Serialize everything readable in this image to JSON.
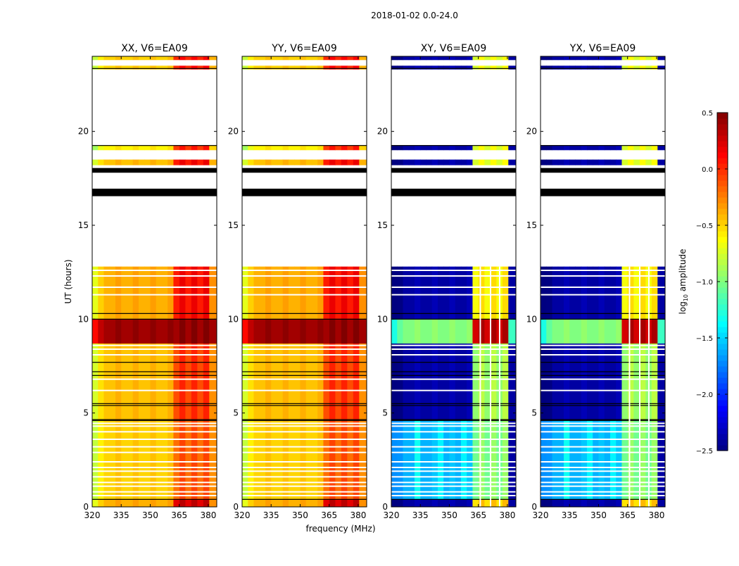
{
  "chart_data": {
    "type": "heatmap",
    "title": "2018-01-02 0.0-24.0",
    "xlabel": "frequency (MHz)",
    "ylabel": "UT (hours)",
    "xlim": [
      320,
      384.4
    ],
    "ylim": [
      0,
      24
    ],
    "xticks": [
      "320",
      "335",
      "350",
      "365",
      "380"
    ],
    "xtick_values": [
      320,
      335,
      350,
      365,
      380
    ],
    "yticks": [
      "0",
      "5",
      "10",
      "15",
      "20"
    ],
    "ytick_values": [
      0,
      5,
      10,
      15,
      20
    ],
    "panels": [
      {
        "title": "XX, V6=EA09",
        "kind": "parallel"
      },
      {
        "title": "YY, V6=EA09",
        "kind": "parallel"
      },
      {
        "title": "XY, V6=EA09",
        "kind": "cross"
      },
      {
        "title": "YX, V6=EA09",
        "kind": "cross"
      }
    ],
    "frequency_bands_mhz": {
      "low": [
        320,
        362
      ],
      "high": [
        362,
        380.5
      ],
      "tail": [
        380.5,
        384.4
      ]
    },
    "high_band_gaps_mhz": [
      366,
      371.3,
      376
    ],
    "segments_note": "values are log10 amplitude [low, high, tail] for parallel / cross panels; state flagged = blank, black = no data",
    "segments": [
      {
        "t0": 0.0,
        "t1": 0.4,
        "state": "data",
        "parallel": [
          -0.4,
          0.25,
          -0.3
        ],
        "cross": [
          -2.4,
          -0.5,
          -2.4
        ]
      },
      {
        "t0": 0.4,
        "t1": 4.6,
        "state": "data",
        "parallel": [
          -0.5,
          -0.15,
          -0.3
        ],
        "cross": [
          -1.6,
          -1.0,
          -2.4
        ]
      },
      {
        "t0": 4.6,
        "t1": 8.7,
        "state": "data",
        "parallel": [
          -0.45,
          -0.05,
          -0.3
        ],
        "cross": [
          -2.4,
          -0.9,
          -2.4
        ]
      },
      {
        "t0": 8.7,
        "t1": 10.0,
        "state": "data",
        "parallel": [
          0.4,
          0.45,
          0.4
        ],
        "cross": [
          -1.0,
          0.3,
          -1.2
        ]
      },
      {
        "t0": 10.0,
        "t1": 12.8,
        "state": "data",
        "parallel": [
          -0.4,
          0.1,
          -0.3
        ],
        "cross": [
          -2.4,
          -0.6,
          -2.4
        ]
      },
      {
        "t0": 12.8,
        "t1": 16.55,
        "state": "flagged"
      },
      {
        "t0": 16.55,
        "t1": 16.95,
        "state": "black"
      },
      {
        "t0": 16.95,
        "t1": 17.8,
        "state": "flagged"
      },
      {
        "t0": 17.8,
        "t1": 18.05,
        "state": "black"
      },
      {
        "t0": 18.05,
        "t1": 18.2,
        "state": "flagged"
      },
      {
        "t0": 18.2,
        "t1": 18.5,
        "state": "data",
        "parallel": [
          -0.45,
          0.1,
          -0.4
        ],
        "cross": [
          -2.4,
          -0.7,
          -2.4
        ]
      },
      {
        "t0": 18.5,
        "t1": 19.0,
        "state": "flagged"
      },
      {
        "t0": 19.0,
        "t1": 19.25,
        "state": "data",
        "parallel": [
          -0.6,
          0.0,
          -0.5
        ],
        "cross": [
          -2.4,
          -0.7,
          -2.4
        ]
      },
      {
        "t0": 19.25,
        "t1": 23.3,
        "state": "flagged"
      },
      {
        "t0": 23.3,
        "t1": 23.5,
        "state": "data",
        "parallel": [
          -0.5,
          0.05,
          -0.4
        ],
        "cross": [
          -2.4,
          -0.7,
          -2.4
        ]
      },
      {
        "t0": 23.5,
        "t1": 23.8,
        "state": "flagged"
      },
      {
        "t0": 23.8,
        "t1": 24.0,
        "state": "data",
        "parallel": [
          -0.5,
          0.05,
          -0.4
        ],
        "cross": [
          -2.4,
          -0.7,
          -2.4
        ]
      }
    ],
    "white_stripes_hours": [
      0.6,
      0.8,
      1.1,
      1.3,
      1.6,
      1.9,
      2.1,
      2.4,
      2.9,
      3.2,
      3.6,
      4.0,
      4.3,
      4.45,
      6.2,
      6.8,
      8.1,
      8.4,
      8.6,
      11.3,
      11.7,
      12.3,
      12.6
    ],
    "black_lines_hours": [
      0.4,
      4.6,
      4.65,
      5.4,
      5.5,
      7.0,
      7.2,
      7.7,
      10.0,
      10.3,
      19.25,
      23.35
    ],
    "colorbar": {
      "label": "log₁₀ amplitude",
      "label_main": "log",
      "label_sub": "10",
      "label_rest": " amplitude",
      "range": [
        -2.5,
        0.5
      ],
      "colormap": "jet",
      "ticks": [
        "0.5",
        "0.0",
        "−0.5",
        "−1.0",
        "−1.5",
        "−2.0",
        "−2.5"
      ],
      "tick_values": [
        0.5,
        0.0,
        -0.5,
        -1.0,
        -1.5,
        -2.0,
        -2.5
      ]
    }
  }
}
